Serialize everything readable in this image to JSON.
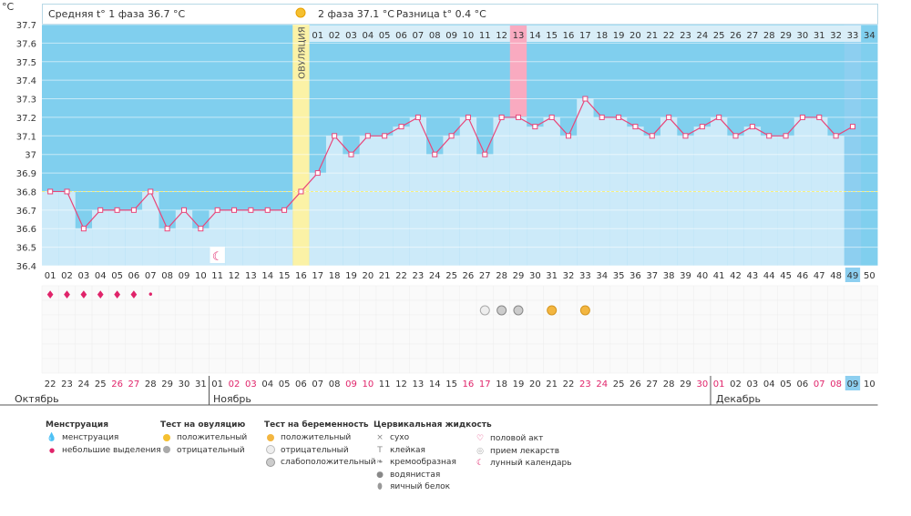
{
  "axis_unit": "°C",
  "header": {
    "phase1": "Средняя t° 1 фаза 36.7 °C",
    "phase2": "2 фаза 37.1 °C",
    "diff": "Разница t° 0.4 °C"
  },
  "ovulation_label": "ОВУЛЯЦИЯ",
  "months": [
    "Октябрь",
    "Ноябрь",
    "Декабрь"
  ],
  "colors": {
    "bar": "#cceaf9",
    "sky": "#80cfee",
    "line": "#e8467a",
    "ovulation": "#fbf2a6",
    "highlight": "#f9aac0",
    "current": "#8dcff0",
    "weekend": "#e0246a"
  },
  "chart_data": {
    "type": "line",
    "title": "",
    "ylim": [
      36.4,
      37.7
    ],
    "yticks": [
      36.4,
      36.5,
      36.6,
      36.7,
      36.8,
      36.9,
      37.0,
      37.1,
      37.2,
      37.3,
      37.4,
      37.5,
      37.6,
      37.7
    ],
    "ytick_labels": [
      "36.4",
      "36.5",
      "36.6",
      "36.7",
      "36.8",
      "36.9",
      "37",
      "37.1",
      "37.2",
      "37.3",
      "37.4",
      "37.5",
      "37.6",
      "37.7"
    ],
    "cycle_days": [
      "01",
      "02",
      "03",
      "04",
      "05",
      "06",
      "07",
      "08",
      "09",
      "10",
      "11",
      "12",
      "13",
      "14",
      "15",
      "16",
      "17",
      "18",
      "19",
      "20",
      "21",
      "22",
      "23",
      "24",
      "25",
      "26",
      "27",
      "28",
      "29",
      "30",
      "31",
      "32",
      "33",
      "34",
      "35",
      "36",
      "37",
      "38",
      "39",
      "40",
      "41",
      "42",
      "43",
      "44",
      "45",
      "46",
      "47",
      "48",
      "49",
      "50"
    ],
    "phase2_days": [
      "01",
      "02",
      "03",
      "04",
      "05",
      "06",
      "07",
      "08",
      "09",
      "10",
      "11",
      "12",
      "13",
      "14",
      "15",
      "16",
      "17",
      "18",
      "19",
      "20",
      "21",
      "22",
      "23",
      "24",
      "25",
      "26",
      "27",
      "28",
      "29",
      "30",
      "31",
      "32",
      "33",
      "34"
    ],
    "dates": [
      "22",
      "23",
      "24",
      "25",
      "26",
      "27",
      "28",
      "29",
      "30",
      "31",
      "01",
      "02",
      "03",
      "04",
      "05",
      "06",
      "07",
      "08",
      "09",
      "10",
      "11",
      "12",
      "13",
      "14",
      "15",
      "16",
      "17",
      "18",
      "19",
      "20",
      "21",
      "22",
      "23",
      "24",
      "25",
      "26",
      "27",
      "28",
      "29",
      "30",
      "01",
      "02",
      "03",
      "04",
      "05",
      "06",
      "07",
      "08",
      "09",
      "10"
    ],
    "weekend_idx": [
      4,
      5,
      11,
      12,
      18,
      19,
      25,
      26,
      32,
      33,
      39,
      40,
      46,
      47
    ],
    "month_start_idx": [
      10,
      40
    ],
    "series": [
      {
        "values": [
          36.8,
          36.8,
          36.6,
          36.7,
          36.7,
          36.7,
          36.8,
          36.6,
          36.7,
          36.6,
          36.7,
          36.7,
          36.7,
          36.7,
          36.7,
          36.8,
          36.9,
          37.1,
          37.0,
          37.1,
          37.1,
          37.15,
          37.2,
          37.0,
          37.1,
          37.2,
          37.0,
          37.2,
          37.2,
          37.15,
          37.2,
          37.1,
          37.3,
          37.2,
          37.2,
          37.15,
          37.1,
          37.2,
          37.1,
          37.15,
          37.2,
          37.1,
          37.15,
          37.1,
          37.1,
          37.2,
          37.2,
          37.1,
          37.15,
          null
        ]
      }
    ],
    "coverline": 36.8,
    "ovulation_day": 16,
    "highlight_phase2_day": 13,
    "current_day": 49,
    "menstruation": {
      "heavy_days": [
        1,
        2,
        3,
        4,
        5,
        6
      ],
      "light_days": [
        7
      ]
    },
    "moon_days": [
      11
    ],
    "pregnancy_test": {
      "negative": [
        27
      ],
      "weak_positive": [
        28,
        29
      ],
      "positive": [
        31,
        33
      ]
    }
  },
  "legend": {
    "menstruation": {
      "title": "Менструация",
      "items": [
        "менструация",
        "небольшие выделения"
      ]
    },
    "ovulation_test": {
      "title": "Тест на овуляцию",
      "items": [
        "положительный",
        "отрицательный"
      ]
    },
    "pregnancy_test": {
      "title": "Тест на беременность",
      "items": [
        "положительный",
        "отрицательный",
        "слабоположительный"
      ]
    },
    "cervical": {
      "title": "Цервикальная жидкость",
      "items": [
        "сухо",
        "клейкая",
        "кремообразная",
        "водянистая",
        "яичный белок"
      ]
    },
    "other": {
      "items": [
        "половой акт",
        "прием лекарств",
        "лунный календарь"
      ]
    }
  }
}
